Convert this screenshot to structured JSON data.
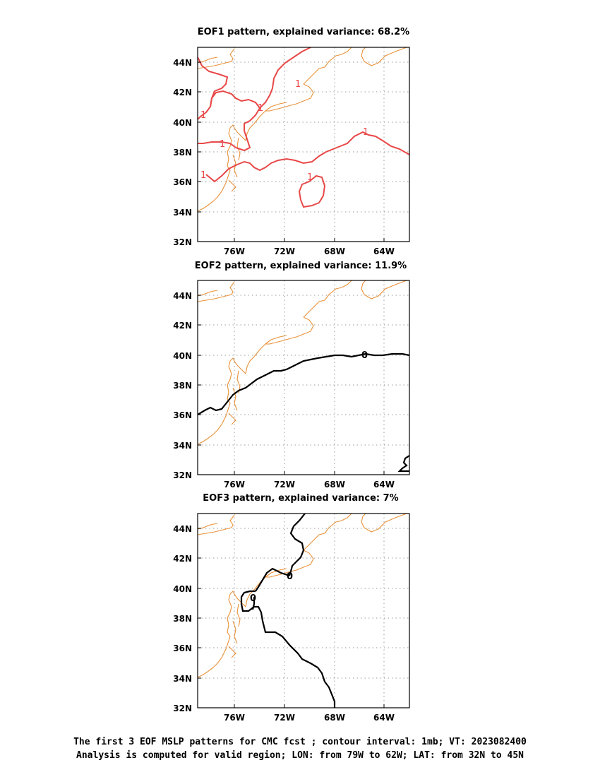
{
  "panels": [
    {
      "title": "EOF1 pattern, explained variance: 68.2%",
      "contour_value": "1",
      "contour_color": "#e84848"
    },
    {
      "title": "EOF2 pattern, explained variance: 11.9%",
      "contour_value": "0",
      "contour_color": "#000000"
    },
    {
      "title": "EOF3 pattern, explained variance: 7%",
      "contour_value": "0",
      "contour_color": "#000000"
    }
  ],
  "axes": {
    "x_ticks": [
      "76W",
      "72W",
      "68W",
      "64W"
    ],
    "y_ticks": [
      "44N",
      "42N",
      "40N",
      "38N",
      "36N",
      "34N",
      "32N"
    ],
    "lon_range": [
      "79W",
      "62W"
    ],
    "lat_range": [
      "32N",
      "45N"
    ],
    "grid": "dotted"
  },
  "colors": {
    "coastline": "#e8923a",
    "grid": "#999999"
  },
  "footer": {
    "line1": "The first 3 EOF MSLP patterns for CMC fcst ; contour interval: 1mb; VT: 2023082400",
    "line2": "Analysis is computed for valid region; LON: from 79W to 62W; LAT: from 32N to 45N"
  }
}
